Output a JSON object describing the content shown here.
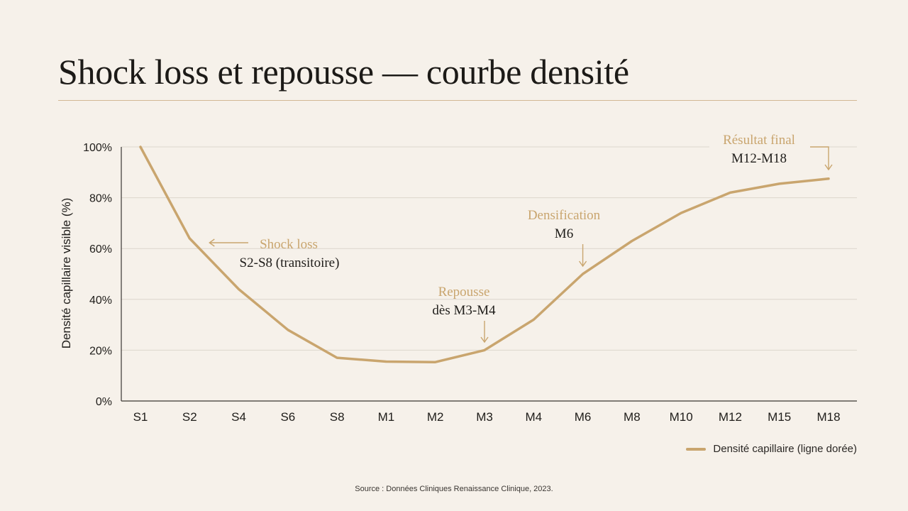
{
  "title": "Shock loss et repousse — courbe densité",
  "source": "Source : Données Cliniques Renaissance Clinique, 2023.",
  "colors": {
    "line": "#c9a56e",
    "annotation": "#c9a56e",
    "grid": "#dcd6cd",
    "axis": "#3a3632",
    "background": "#f6f1ea"
  },
  "chart_data": {
    "type": "line",
    "title": "",
    "xlabel": "",
    "ylabel": "Densité capillaire visible (%)",
    "ylim": [
      0,
      100
    ],
    "yticks": [
      "0%",
      "20%",
      "40%",
      "60%",
      "80%",
      "100%"
    ],
    "grid": true,
    "legend_position": "bottom-right",
    "categories": [
      "S1",
      "S2",
      "S4",
      "S6",
      "S8",
      "M1",
      "M2",
      "M3",
      "M4",
      "M6",
      "M8",
      "M10",
      "M12",
      "M15",
      "M18"
    ],
    "series": [
      {
        "name": "Densité capillaire (ligne dorée)",
        "values": [
          100,
          64,
          44,
          28,
          17,
          15.5,
          15.3,
          20,
          32,
          50,
          63,
          74,
          82,
          85.5,
          87.5
        ]
      }
    ],
    "annotations": [
      {
        "label": "Shock loss",
        "detail": "S2-S8 (transitoire)",
        "target": "S2"
      },
      {
        "label": "Repousse",
        "detail": "dès M3-M4",
        "target": "M3"
      },
      {
        "label": "Densification",
        "detail": "M6",
        "target": "M6"
      },
      {
        "label": "Résultat final",
        "detail": "M12-M18",
        "target": "M18"
      }
    ]
  }
}
